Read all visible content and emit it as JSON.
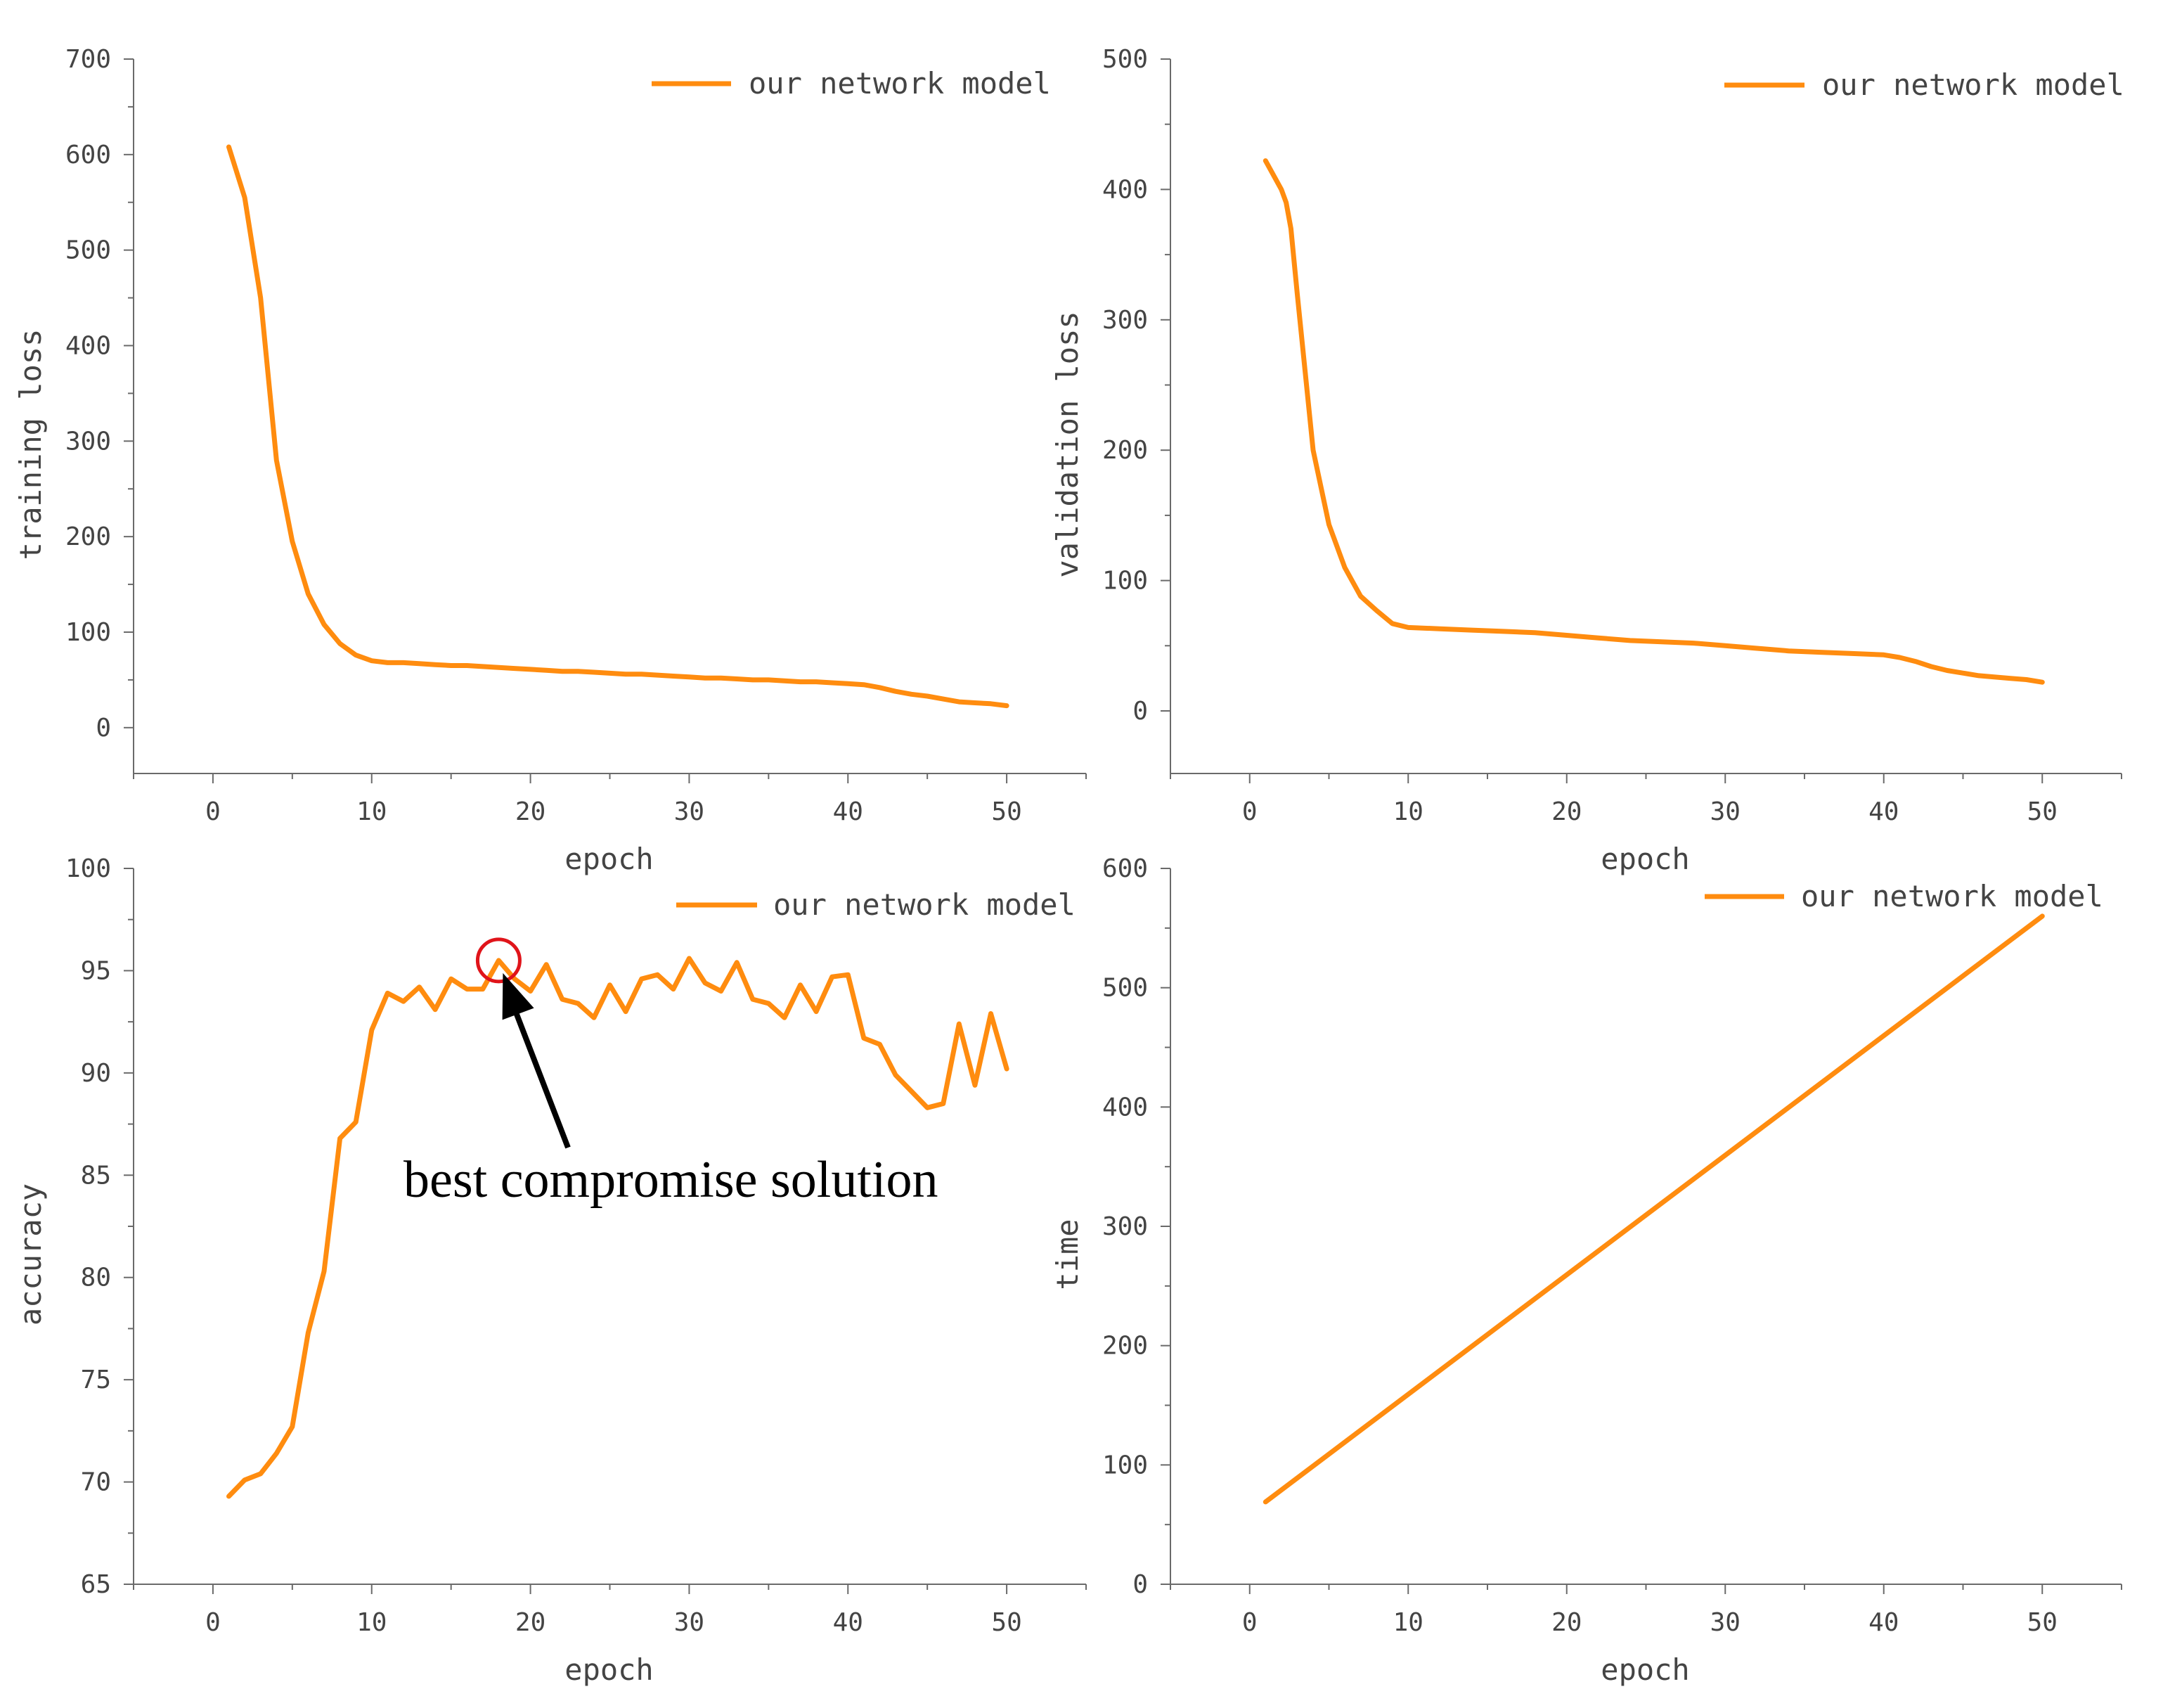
{
  "colors": {
    "series": "#ff8c0f",
    "axis": "#6a6a6a",
    "text": "#444444",
    "highlight_circle": "#e0141a",
    "annotation": "#000000"
  },
  "chart_data": [
    {
      "type": "line",
      "xlabel": "epoch",
      "ylabel": "training loss",
      "xlim": [
        -5,
        55
      ],
      "ylim": [
        -48,
        700
      ],
      "xticks": [
        0,
        10,
        20,
        30,
        40,
        50
      ],
      "yticks": [
        0,
        100,
        200,
        300,
        400,
        500,
        600,
        700
      ],
      "legend": "top-right",
      "grid": false,
      "series": [
        {
          "name": "our network model",
          "x": [
            1,
            2,
            3,
            4,
            5,
            6,
            7,
            8,
            9,
            10,
            11,
            12,
            13,
            14,
            15,
            16,
            17,
            18,
            19,
            20,
            21,
            22,
            23,
            24,
            25,
            26,
            27,
            28,
            29,
            30,
            31,
            32,
            33,
            34,
            35,
            36,
            37,
            38,
            39,
            40,
            41,
            42,
            43,
            44,
            45,
            46,
            47,
            48,
            49,
            50
          ],
          "y": [
            608,
            555,
            450,
            280,
            195,
            140,
            108,
            88,
            76,
            70,
            68,
            68,
            67,
            66,
            65,
            65,
            64,
            63,
            62,
            61,
            60,
            59,
            59,
            58,
            57,
            56,
            56,
            55,
            54,
            53,
            52,
            52,
            51,
            50,
            50,
            49,
            48,
            48,
            47,
            46,
            45,
            42,
            38,
            35,
            33,
            30,
            27,
            26,
            25,
            23
          ]
        }
      ]
    },
    {
      "type": "line",
      "xlabel": "epoch",
      "ylabel": "validation loss",
      "xlim": [
        -5,
        55
      ],
      "ylim": [
        -48,
        500
      ],
      "xticks": [
        0,
        10,
        20,
        30,
        40,
        50
      ],
      "yticks": [
        0,
        100,
        200,
        300,
        400,
        500
      ],
      "legend": "top-right",
      "grid": false,
      "series": [
        {
          "name": "our network model",
          "x": [
            1,
            2,
            2.3,
            2.6,
            3,
            3.5,
            4,
            5,
            6,
            7,
            8,
            9,
            10,
            12,
            14,
            16,
            18,
            20,
            22,
            24,
            26,
            28,
            30,
            32,
            34,
            36,
            38,
            40,
            41,
            42,
            43,
            44,
            46,
            48,
            49,
            50
          ],
          "y": [
            422,
            400,
            390,
            370,
            320,
            260,
            200,
            143,
            110,
            88,
            77,
            67,
            64,
            63,
            62,
            61,
            60,
            58,
            56,
            54,
            53,
            52,
            50,
            48,
            46,
            45,
            44,
            43,
            41,
            38,
            34,
            31,
            27,
            25,
            24,
            22
          ]
        }
      ]
    },
    {
      "type": "line",
      "xlabel": "epoch",
      "ylabel": "accuracy",
      "xlim": [
        -5,
        55
      ],
      "ylim": [
        65,
        100
      ],
      "xticks": [
        0,
        10,
        20,
        30,
        40,
        50
      ],
      "yticks": [
        65,
        70,
        75,
        80,
        85,
        90,
        95,
        100
      ],
      "legend": "top-right",
      "grid": false,
      "annotation": {
        "text": "best compromise solution",
        "x": 18,
        "y": 95.5
      },
      "series": [
        {
          "name": "our network model",
          "x": [
            1,
            2,
            3,
            4,
            5,
            6,
            7,
            8,
            9,
            10,
            11,
            12,
            13,
            14,
            15,
            16,
            17,
            18,
            19,
            20,
            21,
            22,
            23,
            24,
            25,
            26,
            27,
            28,
            29,
            30,
            31,
            32,
            33,
            34,
            35,
            36,
            37,
            38,
            39,
            40,
            41,
            42,
            43,
            44,
            45,
            46,
            47,
            48,
            49,
            50
          ],
          "y": [
            69.3,
            70.1,
            70.4,
            71.4,
            72.7,
            77.3,
            80.3,
            86.8,
            87.6,
            92.1,
            93.9,
            93.5,
            94.2,
            93.1,
            94.6,
            94.1,
            94.1,
            95.5,
            94.6,
            94.0,
            95.3,
            93.6,
            93.4,
            92.7,
            94.3,
            93.0,
            94.6,
            94.8,
            94.1,
            95.6,
            94.4,
            94.0,
            95.4,
            93.6,
            93.4,
            92.7,
            94.3,
            93.0,
            94.7,
            94.8,
            91.7,
            91.4,
            89.9,
            89.1,
            88.3,
            88.5,
            92.4,
            89.4,
            92.9,
            90.2
          ]
        }
      ]
    },
    {
      "type": "line",
      "xlabel": "epoch",
      "ylabel": "time",
      "xlim": [
        -5,
        55
      ],
      "ylim": [
        0,
        600
      ],
      "xticks": [
        0,
        10,
        20,
        30,
        40,
        50
      ],
      "yticks": [
        0,
        100,
        200,
        300,
        400,
        500,
        600
      ],
      "legend": "top-right",
      "grid": false,
      "series": [
        {
          "name": "our network model",
          "x": [
            1,
            50
          ],
          "y": [
            69,
            560
          ]
        }
      ]
    }
  ]
}
